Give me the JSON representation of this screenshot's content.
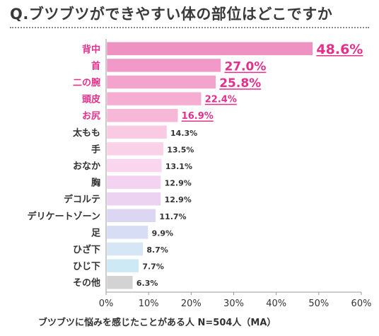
{
  "title": "Q.ブツブツができやすい体の部位はどこですか",
  "note": "ブツブツに悩みを感じたことがある人 N=504人（MA）",
  "chart_data": {
    "type": "bar",
    "orientation": "horizontal",
    "categories": [
      "背中",
      "首",
      "二の腕",
      "頭皮",
      "お尻",
      "太もも",
      "手",
      "おなか",
      "胸",
      "デコルテ",
      "デリケートゾーン",
      "足",
      "ひざ下",
      "ひじ下",
      "その他"
    ],
    "values": [
      48.6,
      27.0,
      25.8,
      22.4,
      16.9,
      14.3,
      13.5,
      13.1,
      12.9,
      12.9,
      11.7,
      9.9,
      8.7,
      7.7,
      6.3
    ],
    "value_labels": [
      "48.6%",
      "27.0%",
      "25.8%",
      "22.4%",
      "16.9%",
      "14.3%",
      "13.5%",
      "13.1%",
      "12.9%",
      "12.9%",
      "11.7%",
      "9.9%",
      "8.7%",
      "7.7%",
      "6.3%"
    ],
    "highlighted_count": 5,
    "x_ticks": [
      "0%",
      "10%",
      "20%",
      "30%",
      "40%",
      "50%",
      "60%"
    ],
    "xlim": [
      0,
      60
    ],
    "grid": false,
    "colors": [
      "#ee92c2",
      "#f199c7",
      "#f3a3cc",
      "#f5aed2",
      "#f7b8d8",
      "#f9cbe3",
      "#fad2e8",
      "#f9d6ee",
      "#f3d3f0",
      "#ecd3f2",
      "#dcd6f3",
      "#d6ddf5",
      "#d6e6f5",
      "#cde9f5",
      "#d3d3d3"
    ],
    "highlight_color": "#e62e8b",
    "text_color": "#333333"
  }
}
